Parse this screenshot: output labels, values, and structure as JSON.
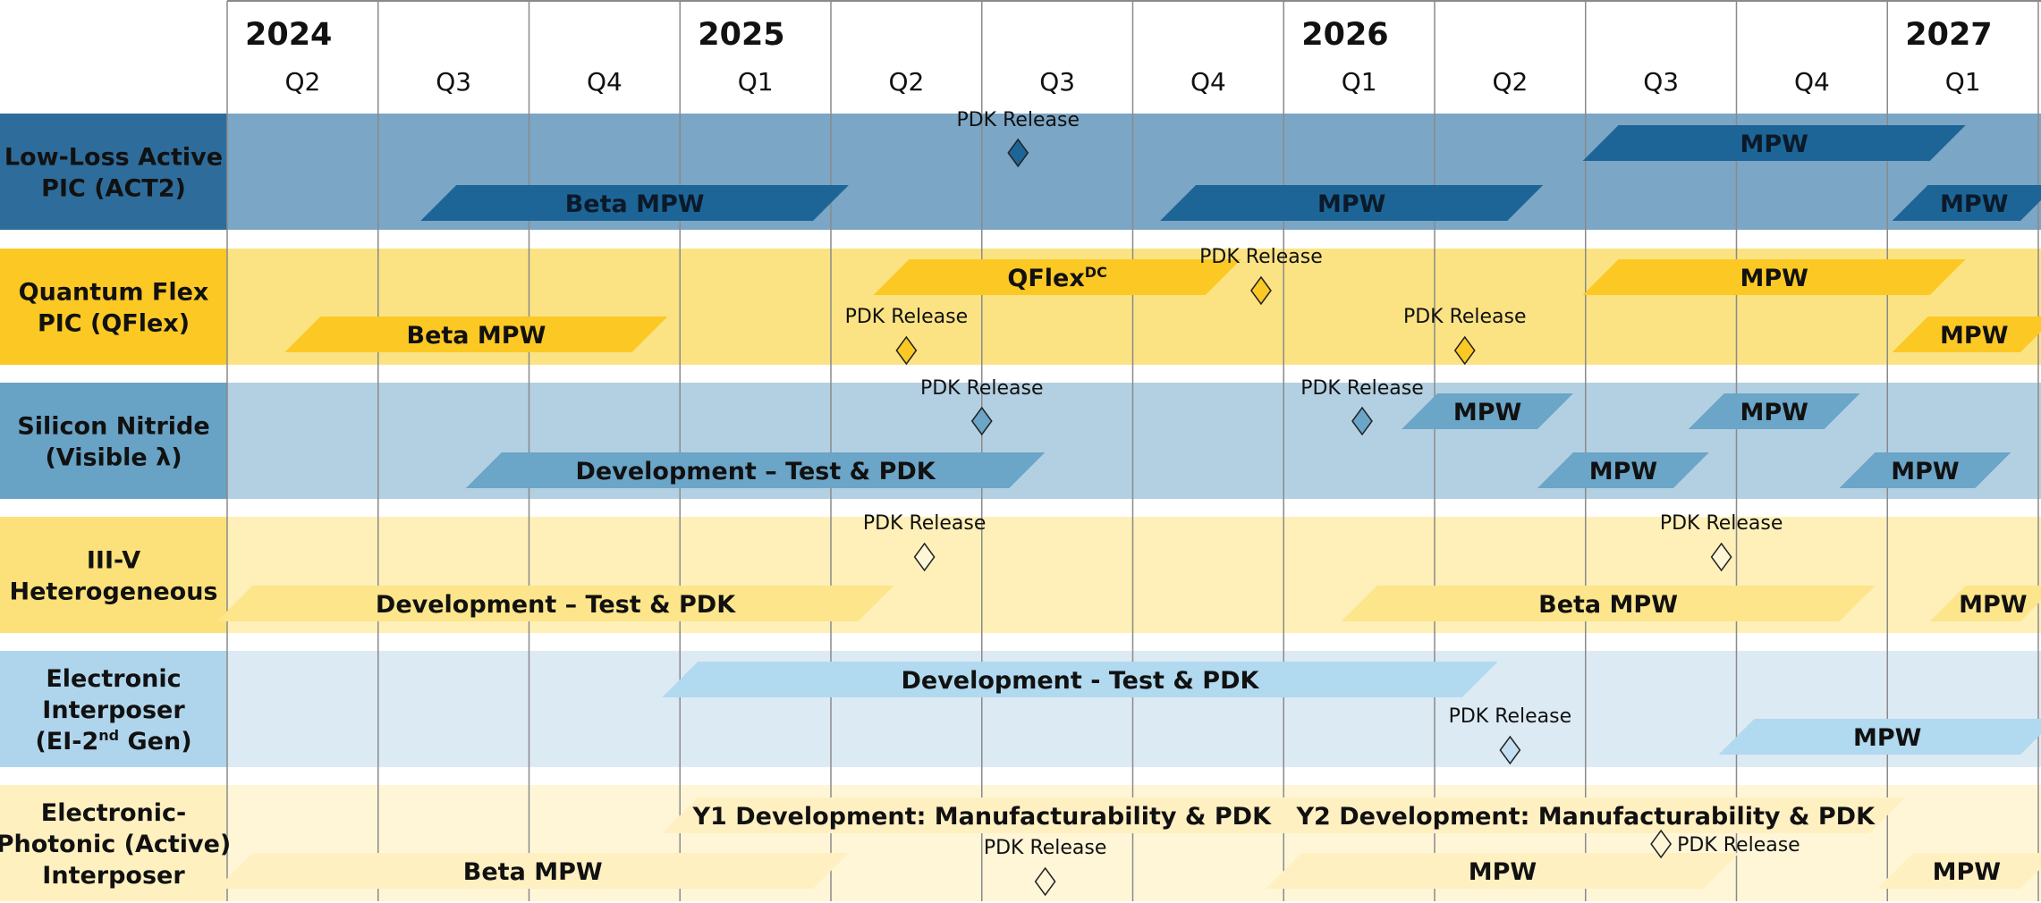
{
  "chart_data": {
    "type": "timeline-roadmap",
    "time_axis": {
      "start": "2024 Q2",
      "end": "2027 Q1",
      "quarters": [
        {
          "year": "2024",
          "q": "Q2"
        },
        {
          "year": "2024",
          "q": "Q3"
        },
        {
          "year": "2024",
          "q": "Q4"
        },
        {
          "year": "2025",
          "q": "Q1"
        },
        {
          "year": "2025",
          "q": "Q2"
        },
        {
          "year": "2025",
          "q": "Q3"
        },
        {
          "year": "2025",
          "q": "Q4"
        },
        {
          "year": "2026",
          "q": "Q1"
        },
        {
          "year": "2026",
          "q": "Q2"
        },
        {
          "year": "2026",
          "q": "Q3"
        },
        {
          "year": "2026",
          "q": "Q4"
        },
        {
          "year": "2027",
          "q": "Q1"
        }
      ],
      "years": [
        "2024",
        "2025",
        "2026",
        "2027"
      ]
    },
    "colors": {
      "row_bg": [
        "#7ba6c6",
        "#fbe384",
        "#b3d0e2",
        "#fef0b8",
        "#dceaf4",
        "#fff6d8"
      ],
      "label_bg": [
        "#2e6d9b",
        "#fcc824",
        "#68a2c5",
        "#fce17a",
        "#afd5ec",
        "#fff0c0"
      ],
      "bar_fill": [
        "#1d6596",
        "#fcc824",
        "#6ba5c7",
        "#fde58b",
        "#b1d9ef",
        "#fff0c2"
      ],
      "diamond_fill": [
        "#1d6596",
        "#fcc824",
        "#6ba5c7",
        "#fff6d8",
        "#c4e0f0",
        "#fff6d8"
      ],
      "grid": "#8a8a8a"
    },
    "rows": [
      {
        "label": [
          "Low-Loss Active",
          "PIC (ACT2)"
        ],
        "bars": [
          {
            "label": "Beta MPW",
            "start": 1.4,
            "end": 4.0,
            "lane": 1
          },
          {
            "label": "MPW",
            "start": 6.3,
            "end": 8.6,
            "lane": 1
          },
          {
            "label": "MPW",
            "start": 9.1,
            "end": 11.4,
            "lane": 0
          },
          {
            "label": "MPW",
            "start": 11.15,
            "end": 12.0,
            "lane": 1
          }
        ],
        "milestones": [
          {
            "label": "PDK Release",
            "at": 5.24
          }
        ]
      },
      {
        "label": [
          "Quantum Flex",
          "PIC (QFlex)"
        ],
        "bars": [
          {
            "label": "QFlex",
            "sup": "DC",
            "start": 4.4,
            "end": 6.6,
            "lane": 0
          },
          {
            "label": "Beta MPW",
            "start": 0.5,
            "end": 2.8,
            "lane": 1
          },
          {
            "label": "MPW",
            "start": 9.1,
            "end": 11.4,
            "lane": 0
          },
          {
            "label": "MPW",
            "start": 11.15,
            "end": 12.0,
            "lane": 1
          }
        ],
        "milestones": [
          {
            "label": "PDK Release",
            "at": 6.85,
            "lane": 0
          },
          {
            "label": "PDK Release",
            "at": 4.5,
            "lane": 1
          },
          {
            "label": "PDK Release",
            "at": 8.2,
            "lane": 1
          }
        ]
      },
      {
        "label": [
          "Silicon Nitride",
          "(Visible λ)"
        ],
        "bars": [
          {
            "label": "Development – Test & PDK",
            "start": 1.7,
            "end": 5.3,
            "lane": 1
          },
          {
            "label": "MPW",
            "start": 7.9,
            "end": 8.8,
            "lane": 0
          },
          {
            "label": "MPW",
            "start": 8.8,
            "end": 9.7,
            "lane": 1
          },
          {
            "label": "MPW",
            "start": 9.8,
            "end": 10.7,
            "lane": 0
          },
          {
            "label": "MPW",
            "start": 10.8,
            "end": 11.7,
            "lane": 1
          }
        ],
        "milestones": [
          {
            "label": "PDK Release",
            "at": 5.0
          },
          {
            "label": "PDK Release",
            "at": 7.52
          }
        ]
      },
      {
        "label": [
          "III-V",
          "Heterogeneous"
        ],
        "bars": [
          {
            "label": "Development – Test & PDK",
            "start": 0.05,
            "end": 4.3,
            "lane": 1
          },
          {
            "label": "Beta MPW",
            "start": 7.5,
            "end": 10.8,
            "lane": 1
          },
          {
            "label": "MPW",
            "start": 11.4,
            "end": 12.0,
            "lane": 1
          }
        ],
        "milestones": [
          {
            "label": "PDK Release",
            "at": 4.62
          },
          {
            "label": "PDK Release",
            "at": 9.9
          }
        ]
      },
      {
        "label": [
          "Electronic",
          "Interposer",
          "(EI-2nd Gen)"
        ],
        "bars": [
          {
            "label": "Development - Test & PDK",
            "start": 3.0,
            "end": 8.3,
            "lane": 0
          },
          {
            "label": "MPW",
            "start": 10.0,
            "end": 12.0,
            "lane": 1
          }
        ],
        "milestones": [
          {
            "label": "PDK Release",
            "at": 8.5
          }
        ]
      },
      {
        "label": [
          "Electronic-",
          "Photonic (Active)",
          "Interposer"
        ],
        "bars": [
          {
            "label": "Y1 Development: Manufacturability & PDK",
            "start": 3.0,
            "end": 7.0,
            "lane": 0
          },
          {
            "label": "Y2 Development: Manufacturability & PDK",
            "start": 7.0,
            "end": 11.0,
            "lane": 0
          },
          {
            "label": "Beta MPW",
            "start": 0.05,
            "end": 4.0,
            "lane": 1
          },
          {
            "label": "MPW",
            "start": 7.0,
            "end": 9.9,
            "lane": 1
          },
          {
            "label": "MPW",
            "start": 11.05,
            "end": 12.0,
            "lane": 1
          }
        ],
        "milestones": [
          {
            "label": "PDK Release",
            "at": 5.42,
            "lane": 1
          },
          {
            "label": "PDK Release",
            "at": 9.5,
            "lane": 2
          }
        ]
      }
    ]
  }
}
